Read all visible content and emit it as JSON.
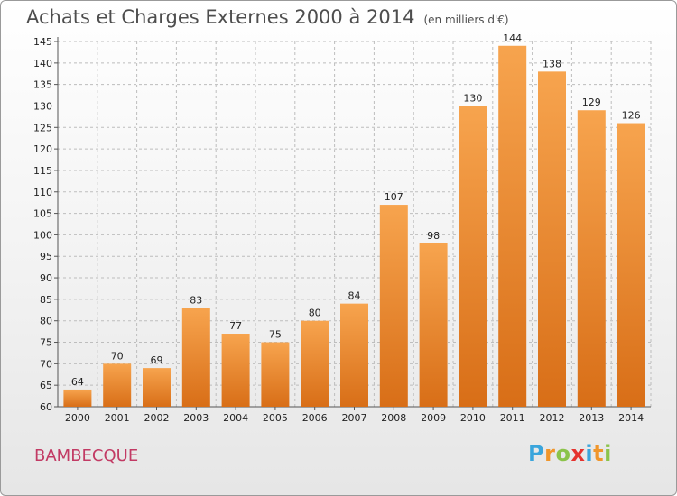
{
  "title": "Achats et Charges Externes 2000 à 2014",
  "unit": "(en milliers d'€)",
  "commune": "BAMBECQUE",
  "logo": {
    "letters": [
      "P",
      "r",
      "o",
      "x",
      "i",
      "t",
      "i"
    ],
    "colors": [
      "#3aa5dc",
      "#f0962b",
      "#8bc34a",
      "#e5322d",
      "#3aa5dc",
      "#f0962b",
      "#8bc34a"
    ]
  },
  "colors": {
    "bar_top": "#f7a44e",
    "bar_bottom": "#d86e17",
    "grid": "#bdbdbd",
    "title": "#4d4d4d",
    "commune": "#c23a64"
  },
  "chart_data": {
    "type": "bar",
    "title": "Achats et Charges Externes 2000 à 2014",
    "subtitle": "(en milliers d'€)",
    "categories": [
      "2000",
      "2001",
      "2002",
      "2003",
      "2004",
      "2005",
      "2006",
      "2007",
      "2008",
      "2009",
      "2010",
      "2011",
      "2012",
      "2013",
      "2014"
    ],
    "values": [
      64,
      70,
      69,
      83,
      77,
      75,
      80,
      84,
      107,
      98,
      130,
      144,
      138,
      129,
      126
    ],
    "ylim": [
      60,
      145
    ],
    "yticks": [
      60,
      65,
      70,
      75,
      80,
      85,
      90,
      95,
      100,
      105,
      110,
      115,
      120,
      125,
      130,
      135,
      140,
      145
    ],
    "grid": true,
    "xlabel": "",
    "ylabel": ""
  }
}
